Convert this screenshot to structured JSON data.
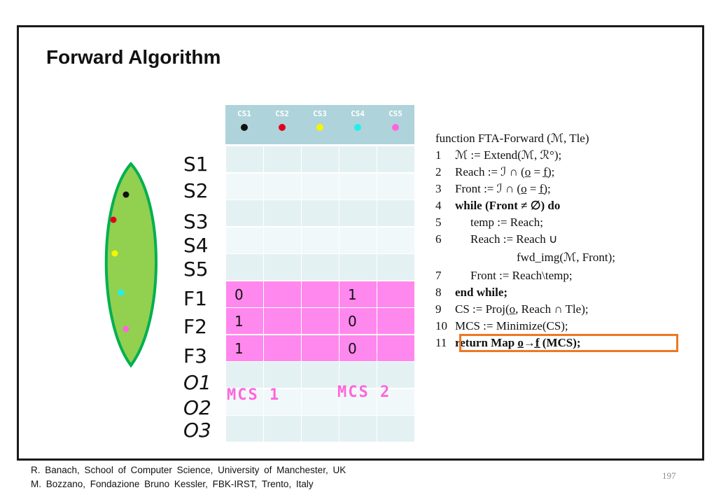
{
  "slide": {
    "title": "Forward Algorithm",
    "page_number": "197",
    "footer_lines": [
      "R. Banach, School of  Computer Science, University of Manchester,  UK",
      "M. Bozzano, Fondazione  Bruno Kessler, FBK-IRST, Trento, Italy"
    ]
  },
  "columns": [
    {
      "label": "CS1",
      "dot_color": "#111111"
    },
    {
      "label": "CS2",
      "dot_color": "#e3001b"
    },
    {
      "label": "CS3",
      "dot_color": "#f5f500"
    },
    {
      "label": "CS4",
      "dot_color": "#22eeee"
    },
    {
      "label": "CS5",
      "dot_color": "#ff66dd"
    }
  ],
  "rows": [
    {
      "label": "S1",
      "cells": [
        "",
        "",
        "",
        "",
        ""
      ],
      "highlight": false
    },
    {
      "label": "S2",
      "cells": [
        "",
        "",
        "",
        "",
        ""
      ],
      "highlight": false
    },
    {
      "label": "S3",
      "cells": [
        "",
        "",
        "",
        "",
        ""
      ],
      "highlight": false
    },
    {
      "label": "S4",
      "cells": [
        "",
        "",
        "",
        "",
        ""
      ],
      "highlight": false
    },
    {
      "label": "S5",
      "cells": [
        "",
        "",
        "",
        "",
        ""
      ],
      "highlight": false
    },
    {
      "label": "F1",
      "cells": [
        "0",
        "",
        "",
        "1",
        ""
      ],
      "highlight": true
    },
    {
      "label": "F2",
      "cells": [
        "1",
        "",
        "",
        "0",
        ""
      ],
      "highlight": true
    },
    {
      "label": "F3",
      "cells": [
        "1",
        "",
        "",
        "0",
        ""
      ],
      "highlight": true
    },
    {
      "label": "O1",
      "cells": [
        "",
        "",
        "",
        "",
        ""
      ],
      "highlight": false
    },
    {
      "label": "O2",
      "cells": [
        "",
        "",
        "",
        "",
        ""
      ],
      "highlight": false
    },
    {
      "label": "O3",
      "cells": [
        "",
        "",
        "",
        "",
        ""
      ],
      "highlight": false
    }
  ],
  "mcs_labels": [
    "MCS 1",
    "MCS 2"
  ],
  "colors": {
    "header_bg": "#aed3da",
    "row_light": "#e4f1f3",
    "row_dark": "#f1f8f9",
    "row_highlight": "#ff88ee",
    "leaf_fill": "#92d050",
    "leaf_stroke": "#00b050",
    "highlight_box": "#ee7722"
  },
  "leaf_dots": [
    "#111111",
    "#e3001b",
    "#f5f500",
    "#22eeee",
    "#ff66dd"
  ],
  "algorithm": {
    "header": "function FTA-Forward (ℳ, Tle)",
    "lines": [
      {
        "num": "1",
        "indent": 0,
        "text": "ℳ := Extend(ℳ, ℛ°);"
      },
      {
        "num": "2",
        "indent": 0,
        "text": "Reach := ℐ ∩ (o̲ = f̲);"
      },
      {
        "num": "3",
        "indent": 0,
        "text": "Front := ℐ ∩ (o̲ = f̲);"
      },
      {
        "num": "4",
        "indent": 0,
        "text": "while (Front ≠ ∅) do"
      },
      {
        "num": "5",
        "indent": 1,
        "text": "temp := Reach;"
      },
      {
        "num": "6",
        "indent": 1,
        "text": "Reach := Reach ∪"
      },
      {
        "num": "",
        "indent": 4,
        "text": "fwd_img(ℳ, Front);"
      },
      {
        "num": "7",
        "indent": 1,
        "text": "Front := Reach\\temp;"
      },
      {
        "num": "8",
        "indent": 0,
        "text": "end while;"
      },
      {
        "num": "9",
        "indent": 0,
        "text": "CS := Proj(o̲, Reach ∩ Tle);"
      },
      {
        "num": "10",
        "indent": 0,
        "text": "MCS := Minimize(CS);"
      },
      {
        "num": "11",
        "indent": 0,
        "text": "return Map o̲→f̲ (MCS);"
      }
    ]
  }
}
